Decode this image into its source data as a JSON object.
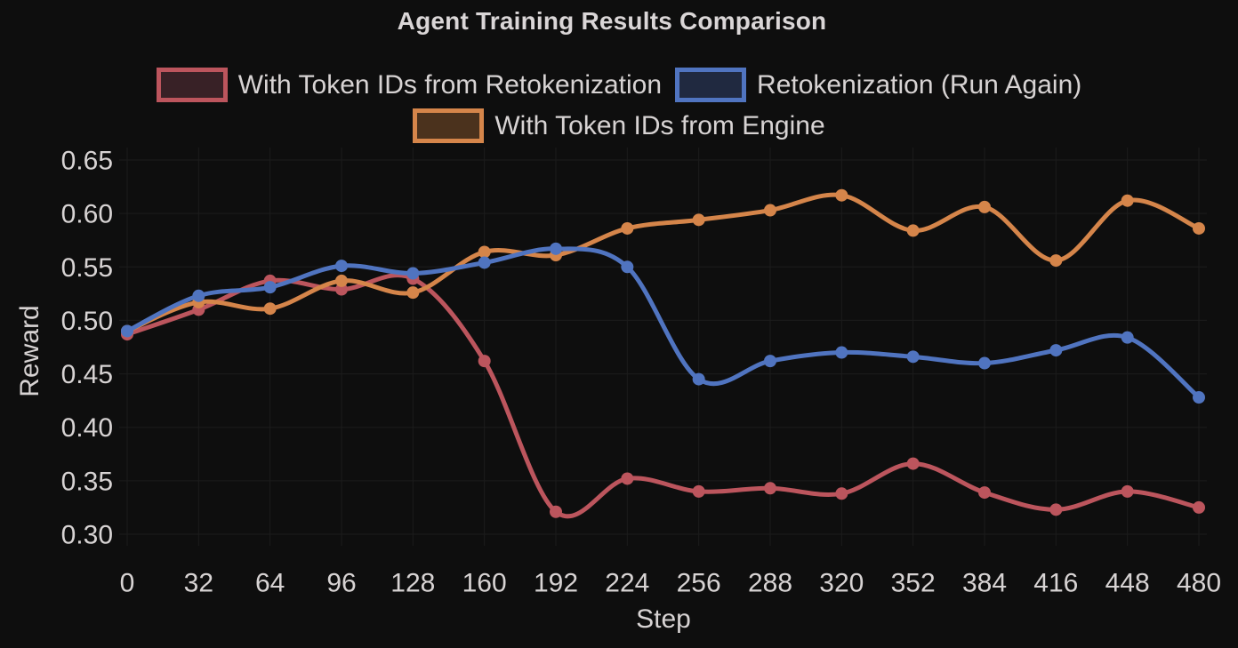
{
  "title": "Agent Training Results Comparison",
  "colors": {
    "background": "#0e0e0e",
    "grid": "#1c1c1c",
    "text": "#d7d3d3",
    "title_text": "#dad6d7",
    "red_line": "#bc555d",
    "blue_line": "#5074c0",
    "orange_line": "#d5854a",
    "red_legend_fill": "#382126",
    "blue_legend_fill": "#202940",
    "orange_legend_fill": "#4b321d"
  },
  "chart_data": {
    "type": "line",
    "title": "Agent Training Results Comparison",
    "xlabel": "Step",
    "ylabel": "Reward",
    "grid": true,
    "legend_position": "top-center-two-rows",
    "line_style": "smooth-spline-with-round-markers",
    "xlim": [
      0,
      480
    ],
    "ylim": [
      0.3,
      0.65
    ],
    "x_ticks": [
      0,
      32,
      64,
      96,
      128,
      160,
      192,
      224,
      256,
      288,
      320,
      352,
      384,
      416,
      448,
      480
    ],
    "y_ticks": [
      0.3,
      0.35,
      0.4,
      0.45,
      0.5,
      0.55,
      0.6,
      0.65
    ],
    "y_tick_labels": [
      "0.30",
      "0.35",
      "0.40",
      "0.45",
      "0.50",
      "0.55",
      "0.60",
      "0.65"
    ],
    "x": [
      0,
      32,
      64,
      96,
      128,
      160,
      192,
      224,
      256,
      288,
      320,
      352,
      384,
      416,
      448,
      480
    ],
    "series": [
      {
        "name": "With Token IDs from Retokenization",
        "color": "#bc555d",
        "legend_fill": "#382126",
        "values": [
          0.487,
          0.51,
          0.537,
          0.529,
          0.539,
          0.462,
          0.321,
          0.352,
          0.34,
          0.343,
          0.338,
          0.366,
          0.339,
          0.323,
          0.34,
          0.325
        ]
      },
      {
        "name": "Retokenization (Run Again)",
        "color": "#5074c0",
        "legend_fill": "#202940",
        "values": [
          0.49,
          0.523,
          0.531,
          0.551,
          0.544,
          0.554,
          0.567,
          0.55,
          0.445,
          0.462,
          0.47,
          0.466,
          0.46,
          0.472,
          0.484,
          0.428
        ]
      },
      {
        "name": "With Token IDs from Engine",
        "color": "#d5854a",
        "legend_fill": "#4b321d",
        "values": [
          0.49,
          0.517,
          0.511,
          0.537,
          0.526,
          0.564,
          0.561,
          0.586,
          0.594,
          0.603,
          0.617,
          0.584,
          0.606,
          0.556,
          0.612,
          0.586
        ]
      }
    ]
  }
}
